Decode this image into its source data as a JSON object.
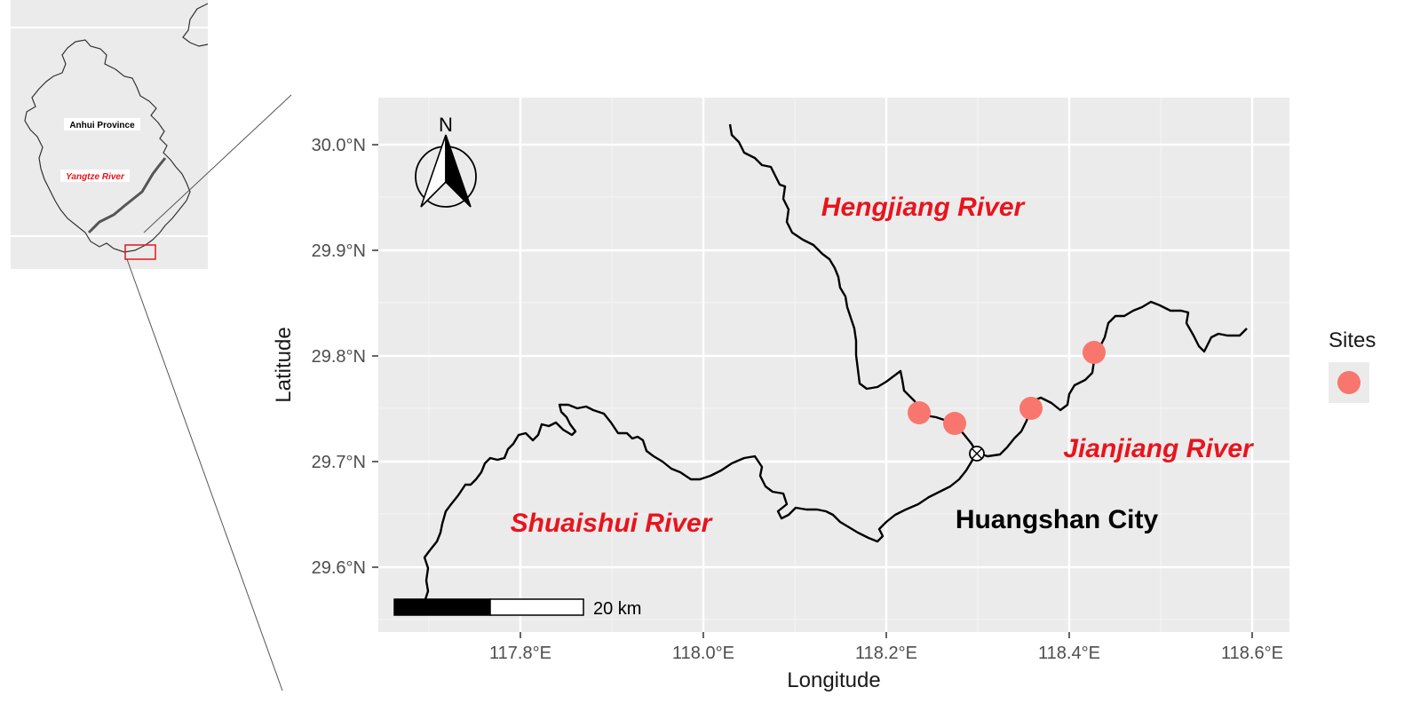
{
  "map": {
    "inset": {
      "province_label": "Anhui Province",
      "river_label": "Yangtze River"
    },
    "main": {
      "north_arrow_label": "N",
      "scale_bar_label": "20 km",
      "x_axis_title": "Longitude",
      "y_axis_title": "Latitude",
      "x_ticks": [
        "117.8°E",
        "118.0°E",
        "118.2°E",
        "118.4°E",
        "118.6°E"
      ],
      "y_ticks": [
        "30.0°N",
        "29.9°N",
        "29.8°N",
        "29.7°N",
        "29.6°N"
      ],
      "labels": {
        "hengjiang": "Hengjiang River",
        "jianjiang": "Jianjiang River",
        "shuaishui": "Shuaishui River",
        "city": "Huangshan City"
      },
      "legend": {
        "title": "Sites"
      },
      "colors": {
        "panel_background": "#ebebeb",
        "site_marker": "#f8766d",
        "river_label": "#e8141d"
      }
    }
  }
}
